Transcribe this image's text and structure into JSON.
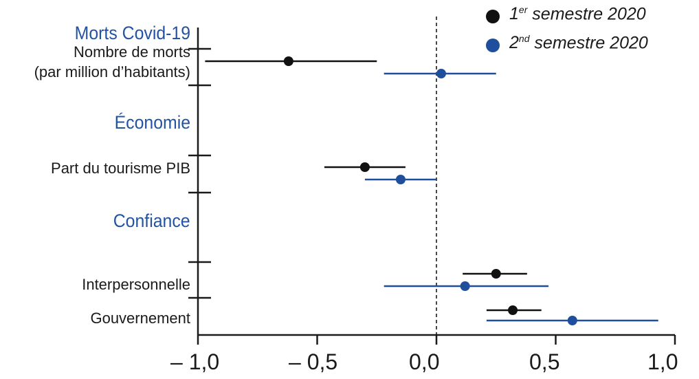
{
  "chart_data": {
    "type": "scatter",
    "subtype": "coefficient-plot-with-confidence-intervals",
    "xlim": [
      -1.0,
      1.0
    ],
    "x_ticks": [
      "– 1,0",
      "– 0,5",
      "0,0",
      "0,5",
      "1,0"
    ],
    "x_tick_values": [
      -1.0,
      -0.5,
      0.0,
      0.5,
      1.0
    ],
    "reference_line": 0.0,
    "legend": {
      "position": "top-right",
      "entries": [
        {
          "sup_prefix": "1",
          "sup": "er",
          "rest": " semestre 2020",
          "color": "#111111"
        },
        {
          "sup_prefix": "2",
          "sup": "nd",
          "rest": " semestre 2020",
          "color": "#1f4e9c"
        }
      ]
    },
    "sections": [
      {
        "label": "Morts Covid-19"
      },
      {
        "label": "Économie"
      },
      {
        "label": "Confiance"
      }
    ],
    "rows": [
      {
        "label_lines": [
          "Nombre de morts",
          "(par million d’habitants)"
        ],
        "s1": {
          "est": -0.62,
          "lo": -0.97,
          "hi": -0.25
        },
        "s2": {
          "est": 0.02,
          "lo": -0.22,
          "hi": 0.25
        }
      },
      {
        "label_lines": [
          "Part du tourisme PIB"
        ],
        "s1": {
          "est": -0.3,
          "lo": -0.47,
          "hi": -0.13
        },
        "s2": {
          "est": -0.15,
          "lo": -0.3,
          "hi": 0.0
        }
      },
      {
        "label_lines": [
          "Interpersonnelle"
        ],
        "s1": {
          "est": 0.25,
          "lo": 0.11,
          "hi": 0.38
        },
        "s2": {
          "est": 0.12,
          "lo": -0.22,
          "hi": 0.47
        }
      },
      {
        "label_lines": [
          "Gouvernement"
        ],
        "s1": {
          "est": 0.32,
          "lo": 0.21,
          "hi": 0.44
        },
        "s2": {
          "est": 0.57,
          "lo": 0.21,
          "hi": 0.93
        }
      }
    ]
  }
}
